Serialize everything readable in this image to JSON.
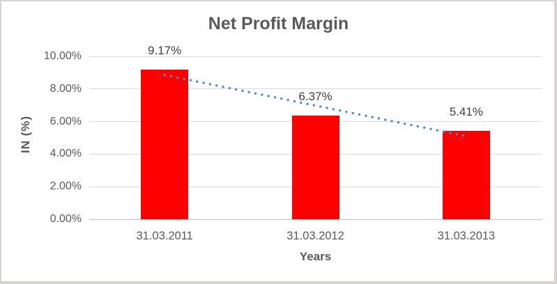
{
  "chart_data": {
    "type": "bar",
    "title": "Net Profit Margin",
    "xlabel": "Years",
    "ylabel": "IN (%)",
    "categories": [
      "31.03.2011",
      "31.03.2012",
      "31.03.2013"
    ],
    "values": [
      9.17,
      6.37,
      5.41
    ],
    "data_labels": [
      "9.17%",
      "6.37%",
      "5.41%"
    ],
    "ylim": [
      0,
      10
    ],
    "ytick_step": 2,
    "ytick_labels": [
      "0.00%",
      "2.00%",
      "4.00%",
      "6.00%",
      "8.00%",
      "10.00%"
    ],
    "grid": true,
    "legend_position": "none",
    "trendline": {
      "type": "linear",
      "style": "dotted",
      "start_value": 8.86,
      "end_value": 5.1
    },
    "colors": {
      "bar": "#ff0000",
      "trendline": "#4e8ac9",
      "title_text": "#595959",
      "axis_text": "#595959",
      "data_label_text": "#3f3f3f",
      "gridline": "#d9d9d9",
      "axis_line": "#bfbfbf",
      "frame_border": "#d7d5d3",
      "background": "#ffffff"
    }
  }
}
